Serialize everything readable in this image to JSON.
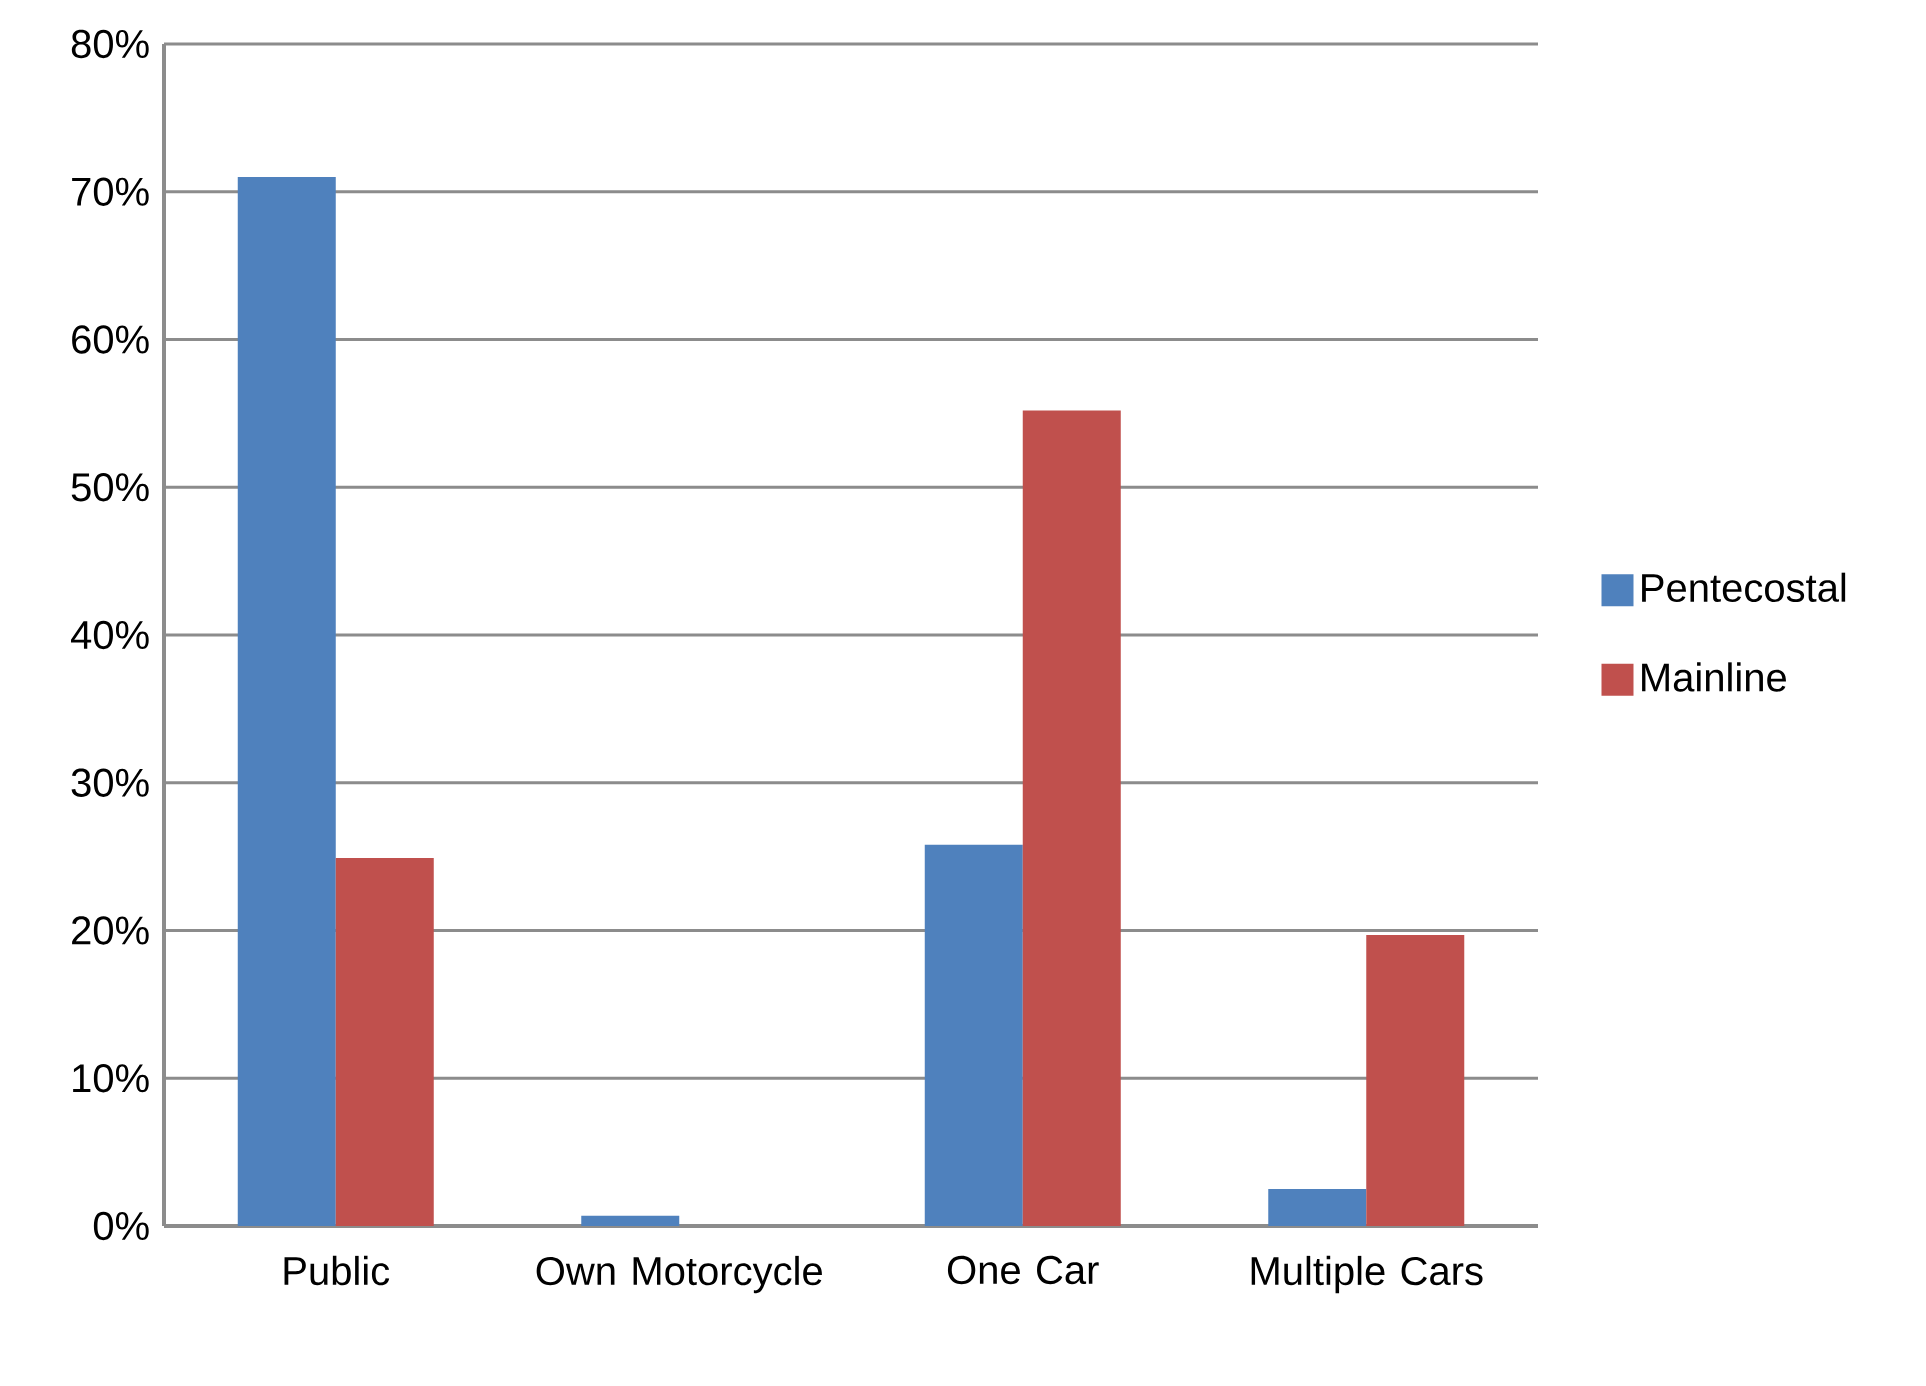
{
  "chart_data": {
    "type": "bar",
    "categories": [
      "Public",
      "Own Motorcycle",
      "One Car",
      "Multiple Cars"
    ],
    "series": [
      {
        "name": "Pentecostal",
        "color": "#4f81bd",
        "values": [
          71,
          0.7,
          25.8,
          2.5
        ]
      },
      {
        "name": "Mainline",
        "color": "#c0504d",
        "values": [
          24.9,
          0,
          55.2,
          19.7
        ]
      }
    ],
    "ylim": [
      0,
      80
    ],
    "yticks": [
      {
        "value": 0,
        "label": "0%"
      },
      {
        "value": 10,
        "label": "10%"
      },
      {
        "value": 20,
        "label": "20%"
      },
      {
        "value": 30,
        "label": "30%"
      },
      {
        "value": 40,
        "label": "40%"
      },
      {
        "value": 50,
        "label": "50%"
      },
      {
        "value": 60,
        "label": "60%"
      },
      {
        "value": 70,
        "label": "70%"
      },
      {
        "value": 80,
        "label": "80%"
      }
    ],
    "grid": "y",
    "legend": "right"
  }
}
